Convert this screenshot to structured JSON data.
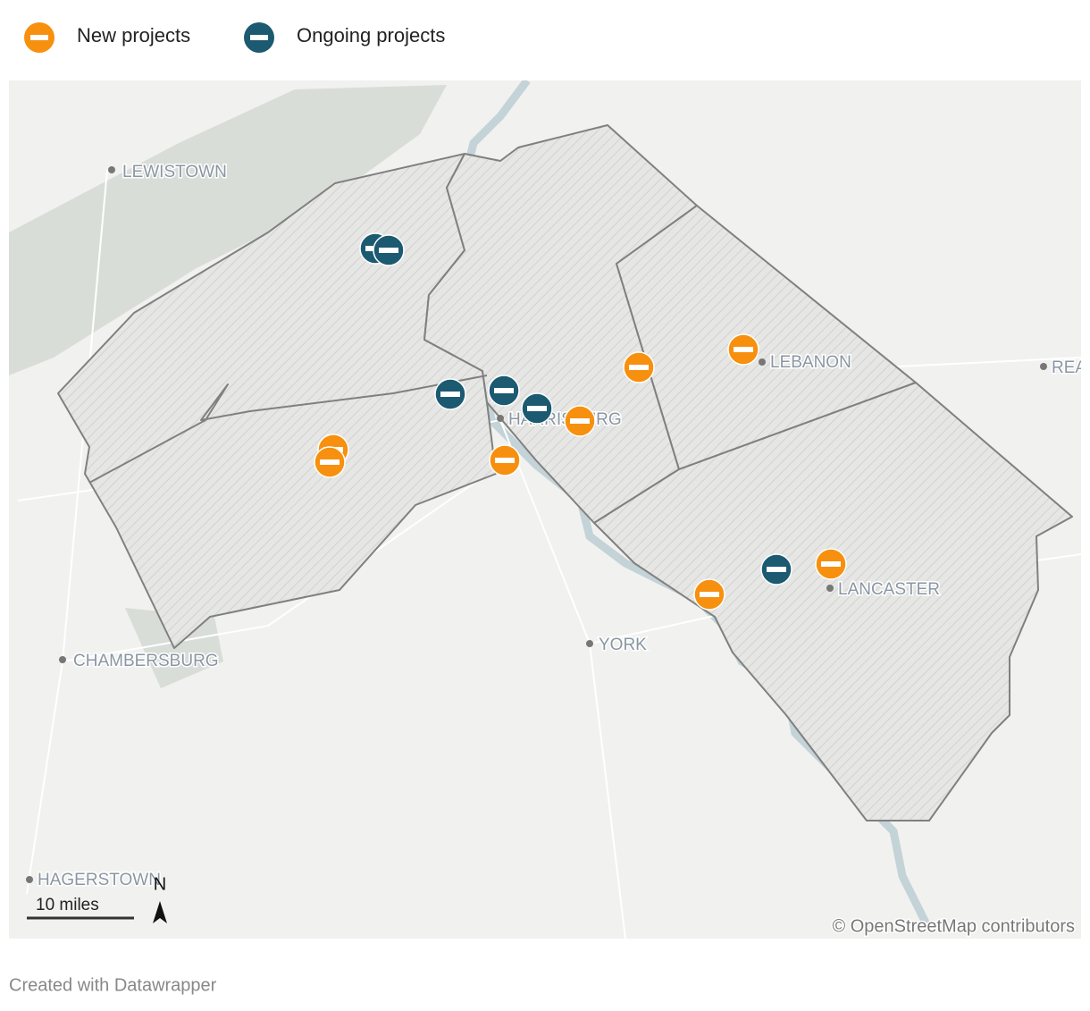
{
  "legend": {
    "items": [
      {
        "label": "New projects",
        "color": "#f7900f"
      },
      {
        "label": "Ongoing projects",
        "color": "#1b5a71"
      }
    ]
  },
  "map": {
    "cities": [
      "LEWISTOWN",
      "LEBANON",
      "HARRISBURG",
      "YORK",
      "LANCASTER",
      "CHAMBERSBURG",
      "HAGERSTOWN",
      "REA"
    ],
    "scale": "10 miles",
    "north": "N",
    "attribution": "© OpenStreetMap contributors"
  },
  "footer": "Created with Datawrapper"
}
